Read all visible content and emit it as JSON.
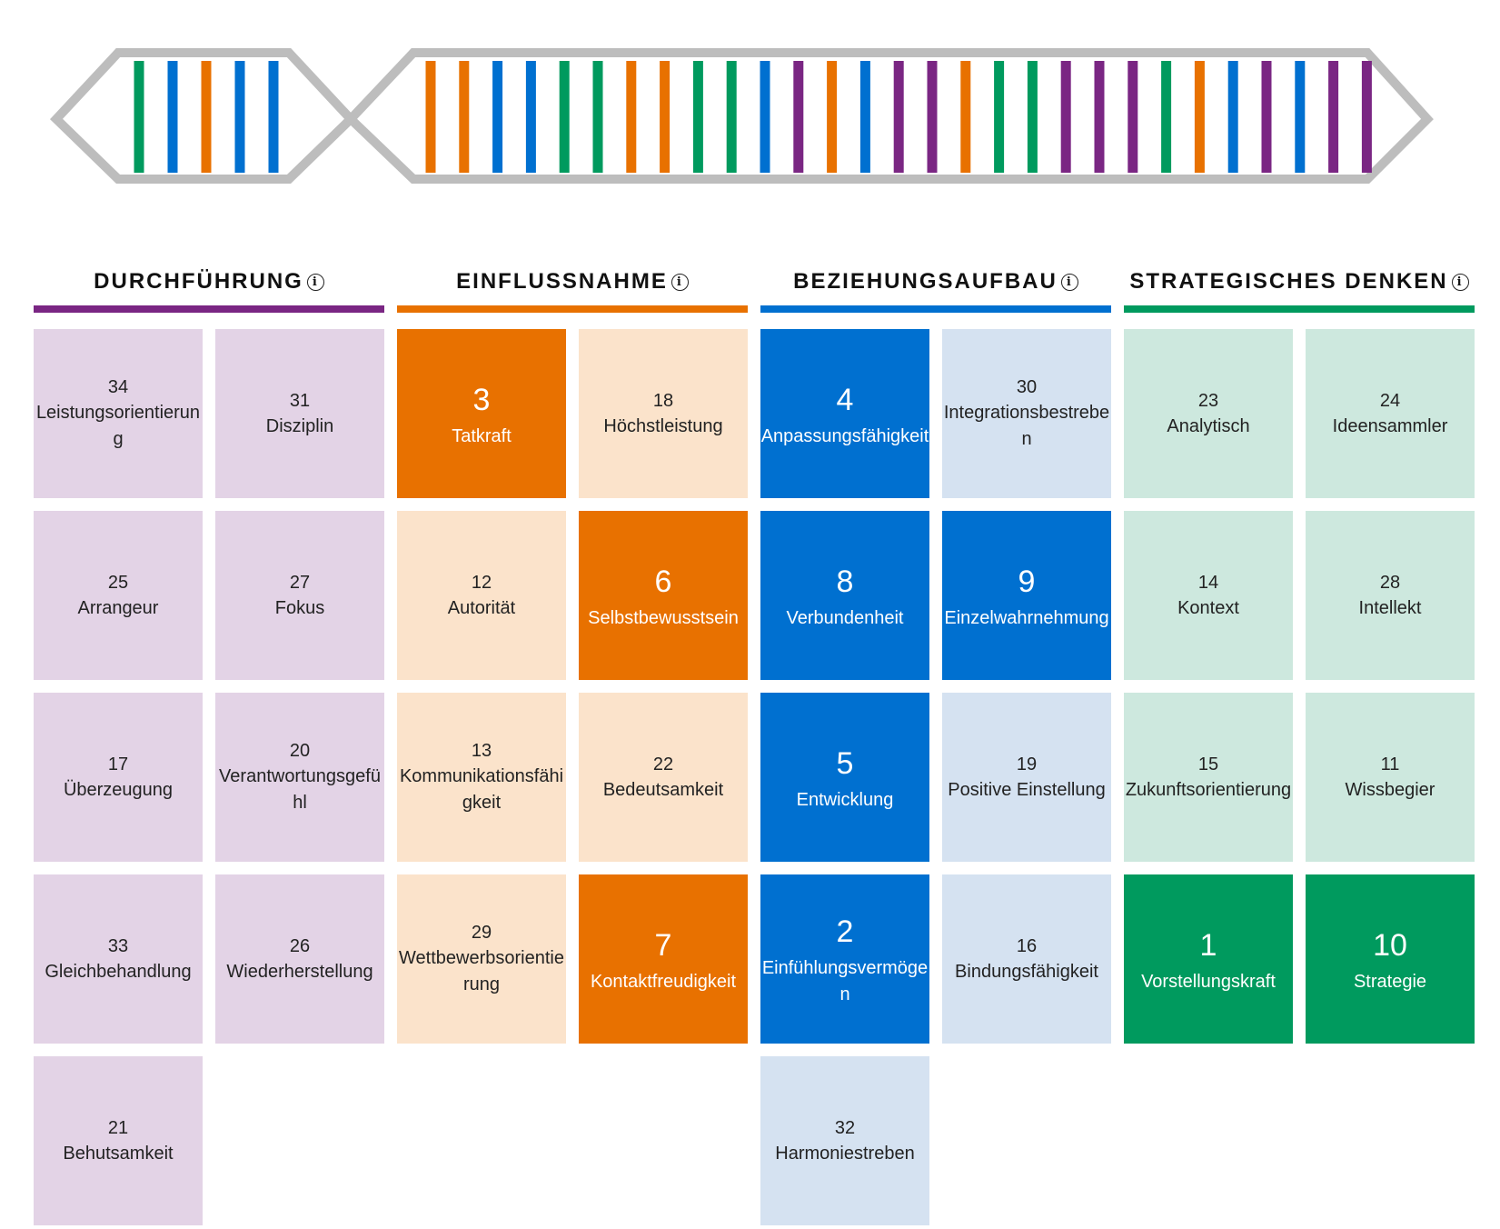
{
  "strip": {
    "group1_colors": [
      "#009A5E",
      "#0070D0",
      "#E87100",
      "#0070D0",
      "#0070D0"
    ],
    "group2_colors": [
      "#E87100",
      "#E87100",
      "#0070D0",
      "#0070D0",
      "#009A5E",
      "#009A5E",
      "#E87100",
      "#E87100",
      "#009A5E",
      "#009A5E",
      "#0070D0",
      "#7A2683",
      "#E87100",
      "#0070D0",
      "#7A2683",
      "#7A2683",
      "#E87100",
      "#009A5E",
      "#009A5E",
      "#7A2683",
      "#7A2683",
      "#7A2683",
      "#009A5E",
      "#E87100",
      "#0070D0",
      "#7A2683",
      "#0070D0",
      "#7A2683",
      "#7A2683"
    ],
    "outline_color": "#BDBDBD"
  },
  "categories": [
    {
      "title": "DURCHFÜHRUNG",
      "color": "#7A2683",
      "light": "#E3D3E6",
      "tiles": [
        {
          "rank": "34",
          "name": "Leistungsorientierung",
          "top": false
        },
        {
          "rank": "31",
          "name": "Disziplin",
          "top": false
        },
        {
          "rank": "25",
          "name": "Arrangeur",
          "top": false
        },
        {
          "rank": "27",
          "name": "Fokus",
          "top": false
        },
        {
          "rank": "17",
          "name": "Überzeugung",
          "top": false
        },
        {
          "rank": "20",
          "name": "Verantwortungsgefühl",
          "top": false
        },
        {
          "rank": "33",
          "name": "Gleichbehandlung",
          "top": false
        },
        {
          "rank": "26",
          "name": "Wiederherstellung",
          "top": false
        },
        {
          "rank": "21",
          "name": "Behutsamkeit",
          "top": false
        }
      ]
    },
    {
      "title": "EINFLUSSNAHME",
      "color": "#E87100",
      "light": "#FBE3CB",
      "tiles": [
        {
          "rank": "3",
          "name": "Tatkraft",
          "top": true
        },
        {
          "rank": "18",
          "name": "Höchstleistung",
          "top": false
        },
        {
          "rank": "12",
          "name": "Autorität",
          "top": false
        },
        {
          "rank": "6",
          "name": "Selbstbewusstsein",
          "top": true
        },
        {
          "rank": "13",
          "name": "Kommunikationsfähigkeit",
          "top": false
        },
        {
          "rank": "22",
          "name": "Bedeutsamkeit",
          "top": false
        },
        {
          "rank": "29",
          "name": "Wettbewerbsorientierung",
          "top": false
        },
        {
          "rank": "7",
          "name": "Kontaktfreudigkeit",
          "top": true
        }
      ]
    },
    {
      "title": "BEZIEHUNGSAUFBAU",
      "color": "#0070D0",
      "light": "#D5E2F1",
      "tiles": [
        {
          "rank": "4",
          "name": "Anpassungsfähigkeit",
          "top": true
        },
        {
          "rank": "30",
          "name": "Integrationsbestreben",
          "top": false
        },
        {
          "rank": "8",
          "name": "Verbundenheit",
          "top": true
        },
        {
          "rank": "9",
          "name": "Einzelwahrnehmung",
          "top": true
        },
        {
          "rank": "5",
          "name": "Entwicklung",
          "top": true
        },
        {
          "rank": "19",
          "name": "Positive Einstellung",
          "top": false
        },
        {
          "rank": "2",
          "name": "Einfühlungsvermögen",
          "top": true
        },
        {
          "rank": "16",
          "name": "Bindungsfähigkeit",
          "top": false
        },
        {
          "rank": "32",
          "name": "Harmoniestreben",
          "top": false
        }
      ]
    },
    {
      "title": "STRATEGISCHES DENKEN",
      "color": "#009A5E",
      "light": "#CDE8DE",
      "tiles": [
        {
          "rank": "23",
          "name": "Analytisch",
          "top": false
        },
        {
          "rank": "24",
          "name": "Ideensammler",
          "top": false
        },
        {
          "rank": "14",
          "name": "Kontext",
          "top": false
        },
        {
          "rank": "28",
          "name": "Intellekt",
          "top": false
        },
        {
          "rank": "15",
          "name": "Zukunftsorientierung",
          "top": false
        },
        {
          "rank": "11",
          "name": "Wissbegier",
          "top": false
        },
        {
          "rank": "1",
          "name": "Vorstellungskraft",
          "top": true
        },
        {
          "rank": "10",
          "name": "Strategie",
          "top": true
        }
      ]
    }
  ]
}
